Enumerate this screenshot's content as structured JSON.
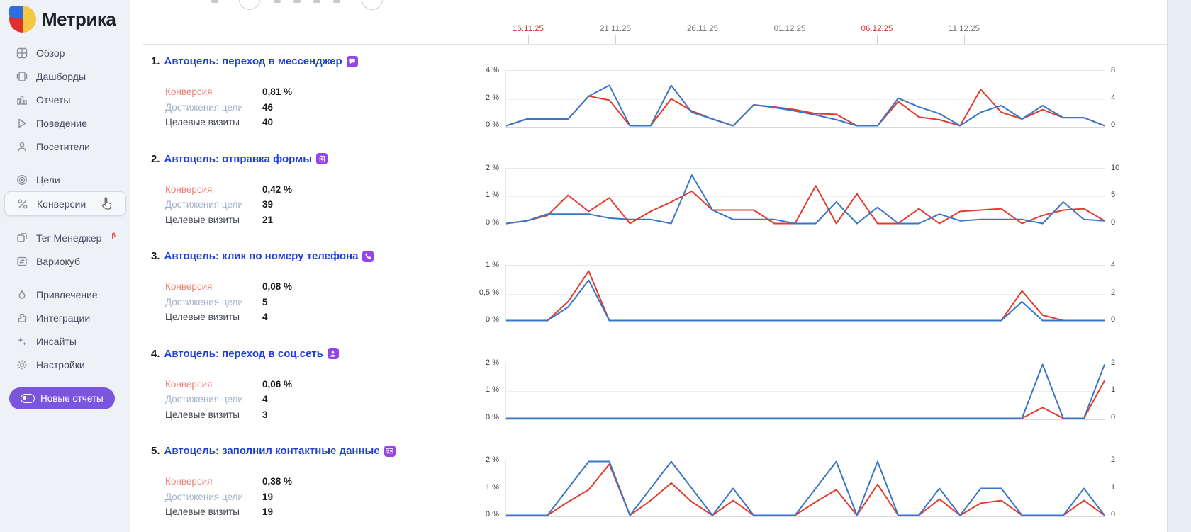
{
  "app": {
    "logo_text": "Метрика"
  },
  "sidebar": {
    "items": [
      {
        "name": "overview",
        "icon": "grid-icon",
        "label": "Обзор"
      },
      {
        "name": "dashboards",
        "icon": "dashboards-icon",
        "label": "Дашборды"
      },
      {
        "name": "reports",
        "icon": "bar-chart-icon",
        "label": "Отчеты"
      },
      {
        "name": "behavior",
        "icon": "play-icon",
        "label": "Поведение"
      },
      {
        "name": "visitors",
        "icon": "person-icon",
        "label": "Посетители"
      },
      {
        "name": "goals",
        "icon": "target-icon",
        "label": "Цели",
        "group_start": true
      },
      {
        "name": "conversions",
        "icon": "percent-icon",
        "label": "Конверсии",
        "selected": true
      },
      {
        "name": "tag-manager",
        "icon": "tag-manager-icon",
        "label": "Тег Менеджер",
        "badge": "β",
        "group_start": true
      },
      {
        "name": "variocube",
        "icon": "variocube-icon",
        "label": "Вариокуб"
      },
      {
        "name": "attraction",
        "icon": "flame-icon",
        "label": "Привлечение",
        "group_start": true
      },
      {
        "name": "integrations",
        "icon": "puzzle-icon",
        "label": "Интеграции"
      },
      {
        "name": "insights",
        "icon": "sparkles-icon",
        "label": "Инсайты"
      },
      {
        "name": "settings",
        "icon": "gear-icon",
        "label": "Настройки"
      }
    ],
    "new_reports_button": {
      "label": "Новые отчеты",
      "icon": "toggle-icon"
    }
  },
  "timeline": {
    "dates": [
      {
        "label": "16.11.25",
        "highlight": true
      },
      {
        "label": "21.11.25",
        "highlight": false
      },
      {
        "label": "26.11.25",
        "highlight": false
      },
      {
        "label": "01.12.25",
        "highlight": false
      },
      {
        "label": "06.12.25",
        "highlight": true
      },
      {
        "label": "11.12.25",
        "highlight": false
      }
    ]
  },
  "goals": [
    {
      "index": "1.",
      "title": "Автоцель: переход в мессенджер",
      "icon": "messenger-icon",
      "stats": [
        {
          "label": "Конверсия",
          "value": "0,81 %"
        },
        {
          "label": "Достижения цели",
          "value": "46"
        },
        {
          "label": "Целевые визиты",
          "value": "40"
        }
      ],
      "axis_left": [
        "4 %",
        "2 %",
        "0 %"
      ],
      "axis_right": [
        "8",
        "4",
        "0"
      ]
    },
    {
      "index": "2.",
      "title": "Автоцель: отправка формы",
      "icon": "form-icon",
      "stats": [
        {
          "label": "Конверсия",
          "value": "0,42 %"
        },
        {
          "label": "Достижения цели",
          "value": "39"
        },
        {
          "label": "Целевые визиты",
          "value": "21"
        }
      ],
      "axis_left": [
        "2 %",
        "1 %",
        "0 %"
      ],
      "axis_right": [
        "10",
        "5",
        "0"
      ]
    },
    {
      "index": "3.",
      "title": "Автоцель: клик по номеру телефона",
      "icon": "phone-icon",
      "stats": [
        {
          "label": "Конверсия",
          "value": "0,08 %"
        },
        {
          "label": "Достижения цели",
          "value": "5"
        },
        {
          "label": "Целевые визиты",
          "value": "4"
        }
      ],
      "axis_left": [
        "1 %",
        "0,5 %",
        "0 %"
      ],
      "axis_right": [
        "4",
        "2",
        "0"
      ]
    },
    {
      "index": "4.",
      "title": "Автоцель: переход в соц.сеть",
      "icon": "social-person-icon",
      "stats": [
        {
          "label": "Конверсия",
          "value": "0,06 %"
        },
        {
          "label": "Достижения цели",
          "value": "4"
        },
        {
          "label": "Целевые визиты",
          "value": "3"
        }
      ],
      "axis_left": [
        "2 %",
        "1 %",
        "0 %"
      ],
      "axis_right": [
        "2",
        "1",
        "0"
      ]
    },
    {
      "index": "5.",
      "title": "Автоцель: заполнил контактные данные",
      "icon": "contact-card-icon",
      "stats": [
        {
          "label": "Конверсия",
          "value": "0,38 %"
        },
        {
          "label": "Достижения цели",
          "value": "19"
        },
        {
          "label": "Целевые визиты",
          "value": "19"
        }
      ],
      "axis_left": [
        "2 %",
        "1 %",
        "0 %"
      ],
      "axis_right": [
        "2",
        "1",
        "0"
      ]
    }
  ],
  "chart_data": [
    {
      "type": "line",
      "title": "Автоцель: переход в мессенджер",
      "x_tick_labels": [
        "16.11.25",
        "21.11.25",
        "26.11.25",
        "01.12.25",
        "06.12.25",
        "11.12.25"
      ],
      "ylim_left_percent": [
        0,
        4
      ],
      "ylim_right_count": [
        0,
        8
      ],
      "grid": true,
      "legend": false,
      "unit": "percent",
      "series": [
        {
          "name": "red",
          "color": "#e23b2e",
          "values": [
            0,
            0.5,
            0.5,
            0.5,
            2.2,
            1.9,
            0,
            0,
            2.0,
            1.1,
            0.5,
            0,
            1.55,
            1.4,
            1.2,
            0.9,
            0.85,
            0,
            0,
            1.8,
            0.65,
            0.45,
            0,
            2.7,
            1.0,
            0.5,
            1.2,
            0.6,
            0.6,
            0
          ]
        },
        {
          "name": "blue",
          "color": "#3a76c7",
          "values": [
            0,
            0.5,
            0.5,
            0.5,
            2.2,
            3.0,
            0,
            0,
            3.0,
            1.0,
            0.5,
            0,
            1.55,
            1.35,
            1.1,
            0.8,
            0.45,
            0,
            0,
            2.05,
            1.4,
            0.9,
            0,
            1.0,
            1.5,
            0.5,
            1.5,
            0.6,
            0.6,
            0
          ]
        }
      ]
    },
    {
      "type": "line",
      "title": "Автоцель: отправка формы",
      "x_tick_labels": [
        "16.11.25",
        "21.11.25",
        "26.11.25",
        "01.12.25",
        "06.12.25",
        "11.12.25"
      ],
      "ylim_left_percent": [
        0,
        2
      ],
      "ylim_right_count": [
        0,
        10
      ],
      "grid": true,
      "legend": false,
      "unit": "percent",
      "series": [
        {
          "name": "red",
          "color": "#e23b2e",
          "values": [
            0,
            0.1,
            0.3,
            1.05,
            0.45,
            0.95,
            0,
            0.45,
            0.8,
            1.2,
            0.5,
            0.5,
            0.5,
            0,
            0,
            1.4,
            0,
            1.1,
            0,
            0,
            0.55,
            0,
            0.45,
            0.5,
            0.55,
            0,
            0.3,
            0.5,
            0.55,
            0.1
          ]
        },
        {
          "name": "blue",
          "color": "#3a76c7",
          "values": [
            0,
            0.1,
            0.35,
            0.35,
            0.35,
            0.2,
            0.15,
            0.15,
            0,
            1.8,
            0.5,
            0.15,
            0.15,
            0.15,
            0,
            0,
            0.8,
            0,
            0.6,
            0,
            0,
            0.35,
            0.1,
            0.15,
            0.15,
            0.15,
            0,
            0.8,
            0.15,
            0.1
          ]
        }
      ]
    },
    {
      "type": "line",
      "title": "Автоцель: клик по номеру телефона",
      "x_tick_labels": [
        "16.11.25",
        "21.11.25",
        "26.11.25",
        "01.12.25",
        "06.12.25",
        "11.12.25"
      ],
      "ylim_left_percent": [
        0,
        1
      ],
      "ylim_right_count": [
        0,
        4
      ],
      "grid": true,
      "legend": false,
      "unit": "percent",
      "series": [
        {
          "name": "red",
          "color": "#e23b2e",
          "values": [
            0,
            0,
            0,
            0.35,
            0.92,
            0,
            0,
            0,
            0,
            0,
            0,
            0,
            0,
            0,
            0,
            0,
            0,
            0,
            0,
            0,
            0,
            0,
            0,
            0,
            0,
            0.55,
            0.1,
            0,
            0,
            0
          ]
        },
        {
          "name": "blue",
          "color": "#3a76c7",
          "values": [
            0,
            0,
            0,
            0.25,
            0.75,
            0,
            0,
            0,
            0,
            0,
            0,
            0,
            0,
            0,
            0,
            0,
            0,
            0,
            0,
            0,
            0,
            0,
            0,
            0,
            0,
            0.35,
            0,
            0,
            0,
            0
          ]
        }
      ]
    },
    {
      "type": "line",
      "title": "Автоцель: переход в соц.сеть",
      "x_tick_labels": [
        "16.11.25",
        "21.11.25",
        "26.11.25",
        "01.12.25",
        "06.12.25",
        "11.12.25"
      ],
      "ylim_left_percent": [
        0,
        2
      ],
      "ylim_right_count": [
        0,
        2
      ],
      "grid": true,
      "legend": false,
      "unit": "percent",
      "series": [
        {
          "name": "red",
          "color": "#e23b2e",
          "values": [
            0,
            0,
            0,
            0,
            0,
            0,
            0,
            0,
            0,
            0,
            0,
            0,
            0,
            0,
            0,
            0,
            0,
            0,
            0,
            0,
            0,
            0,
            0,
            0,
            0,
            0,
            0.4,
            0,
            0,
            1.4
          ]
        },
        {
          "name": "blue",
          "color": "#3a76c7",
          "values": [
            0,
            0,
            0,
            0,
            0,
            0,
            0,
            0,
            0,
            0,
            0,
            0,
            0,
            0,
            0,
            0,
            0,
            0,
            0,
            0,
            0,
            0,
            0,
            0,
            0,
            0,
            2,
            0,
            0,
            2
          ]
        }
      ]
    },
    {
      "type": "line",
      "title": "Автоцель: заполнил контактные данные",
      "x_tick_labels": [
        "16.11.25",
        "21.11.25",
        "26.11.25",
        "01.12.25",
        "06.12.25",
        "11.12.25"
      ],
      "ylim_left_percent": [
        0,
        2
      ],
      "ylim_right_count": [
        0,
        2
      ],
      "grid": true,
      "legend": false,
      "unit": "percent",
      "series": [
        {
          "name": "red",
          "color": "#e23b2e",
          "values": [
            0,
            0,
            0,
            0.5,
            0.95,
            1.9,
            0,
            0.55,
            1.2,
            0.5,
            0,
            0.55,
            0,
            0,
            0,
            0.5,
            0.95,
            0,
            1.15,
            0,
            0,
            0.6,
            0,
            0.45,
            0.55,
            0,
            0,
            0,
            0.55,
            0
          ]
        },
        {
          "name": "blue",
          "color": "#3a76c7",
          "values": [
            0,
            0,
            0,
            1,
            2,
            2,
            0,
            1,
            2,
            1,
            0,
            1,
            0,
            0,
            0,
            1,
            2,
            0,
            2,
            0,
            0,
            1,
            0,
            1,
            1,
            0,
            0,
            0,
            1,
            0
          ]
        }
      ]
    }
  ],
  "colors": {
    "accent_blue_line": "#3a76c7",
    "accent_red_line": "#e23b2e",
    "link_blue": "#1f3fd6",
    "goal_icon_purple": "#9444e8",
    "date_highlight_red": "#d32b2b",
    "sidebar_bg": "#eef1f6",
    "button_purple": "#7c55df",
    "conversion_label": "#ef8077",
    "reach_label": "#a3b2cc"
  }
}
